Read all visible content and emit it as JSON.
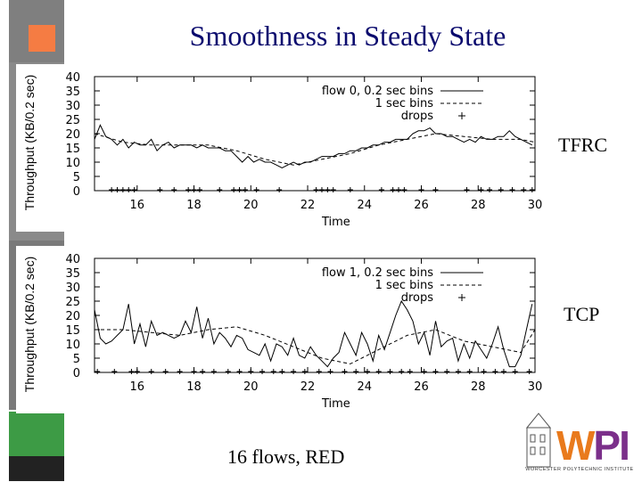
{
  "slide": {
    "title": "Smoothness in Steady State",
    "footer": "16 flows, RED"
  },
  "labels": {
    "top": "TFRC",
    "bottom": "TCP"
  },
  "logo": {
    "text": "WPI",
    "subtitle": "WORCESTER POLYTECHNIC INSTITUTE"
  },
  "colors": {
    "title": "#0a0a6e",
    "sidebar_gray": "#7f7f7f",
    "sidebar_orange": "#f57c43",
    "sidebar_green": "#3d9b45",
    "logo_orange": "#e97a1c",
    "logo_purple": "#7b2f8a"
  },
  "chart_data": [
    {
      "type": "line",
      "xlabel": "Time",
      "ylabel": "Throughput (KB/0.2 sec)",
      "xlim": [
        14.5,
        30
      ],
      "ylim": [
        0,
        40
      ],
      "xticks": [
        16,
        18,
        20,
        22,
        24,
        26,
        28,
        30
      ],
      "yticks": [
        0,
        5,
        10,
        15,
        20,
        25,
        30,
        35,
        40
      ],
      "legend_position": "top-right",
      "legend": [
        "flow 0, 0.2 sec bins",
        "1 sec bins",
        "drops"
      ],
      "series": [
        {
          "name": "flow 0, 0.2 sec bins",
          "style": "solid",
          "x": [
            14.5,
            14.7,
            14.9,
            15.1,
            15.3,
            15.5,
            15.7,
            15.9,
            16.1,
            16.3,
            16.5,
            16.7,
            16.9,
            17.1,
            17.3,
            17.5,
            17.7,
            17.9,
            18.1,
            18.3,
            18.5,
            18.7,
            18.9,
            19.1,
            19.3,
            19.5,
            19.7,
            19.9,
            20.1,
            20.3,
            20.5,
            20.7,
            20.9,
            21.1,
            21.3,
            21.5,
            21.7,
            21.9,
            22.1,
            22.3,
            22.5,
            22.7,
            22.9,
            23.1,
            23.3,
            23.5,
            23.7,
            23.9,
            24.1,
            24.3,
            24.5,
            24.7,
            24.9,
            25.1,
            25.3,
            25.5,
            25.7,
            25.9,
            26.1,
            26.3,
            26.5,
            26.7,
            26.9,
            27.1,
            27.3,
            27.5,
            27.7,
            27.9,
            28.1,
            28.3,
            28.5,
            28.7,
            28.9,
            29.1,
            29.3,
            29.5,
            29.7,
            29.9
          ],
          "values": [
            18,
            23,
            19,
            18,
            16,
            18,
            15,
            17,
            16,
            16,
            18,
            14,
            16,
            17,
            15,
            16,
            16,
            16,
            15,
            16,
            15,
            15,
            15,
            14,
            14,
            12,
            10,
            12,
            10,
            11,
            10,
            10,
            9,
            8,
            9,
            10,
            9,
            10,
            10,
            11,
            12,
            12,
            12,
            13,
            13,
            14,
            14,
            15,
            15,
            16,
            16,
            17,
            17,
            18,
            18,
            18,
            20,
            21,
            21,
            22,
            20,
            20,
            19,
            19,
            18,
            17,
            18,
            17,
            19,
            18,
            18,
            19,
            19,
            21,
            19,
            18,
            17,
            16
          ]
        },
        {
          "name": "1 sec bins",
          "style": "dashed",
          "x": [
            14.5,
            15.5,
            16.5,
            17.5,
            18.5,
            19.5,
            20.5,
            21.5,
            22.5,
            23.5,
            24.5,
            25.5,
            26.5,
            27.5,
            28.5,
            29.5,
            30
          ],
          "values": [
            20,
            17,
            16,
            16,
            16,
            14,
            11,
            9,
            11,
            13,
            16,
            18,
            20,
            19,
            18,
            18,
            17
          ]
        },
        {
          "name": "drops",
          "style": "marker",
          "x": [
            15.1,
            15.3,
            15.5,
            15.7,
            15.9,
            16.8,
            17.3,
            17.8,
            18.0,
            18.2,
            18.9,
            19.4,
            19.6,
            19.8,
            20.2,
            21.0,
            22.3,
            22.5,
            22.7,
            22.9,
            23.5,
            24.6,
            25.0,
            25.2,
            25.4,
            26.0,
            26.5,
            27.6,
            28.1,
            28.4,
            28.8,
            29.2,
            29.6,
            29.9
          ],
          "values": [
            0,
            0,
            0,
            0,
            0,
            0,
            0,
            0,
            0,
            0,
            0,
            0,
            0,
            0,
            0,
            0,
            0,
            0,
            0,
            0,
            0,
            0,
            0,
            0,
            0,
            0,
            0,
            0,
            0,
            0,
            0,
            0,
            0,
            0
          ]
        }
      ]
    },
    {
      "type": "line",
      "xlabel": "Time",
      "ylabel": "Throughput (KB/0.2 sec)",
      "xlim": [
        14.5,
        30
      ],
      "ylim": [
        0,
        40
      ],
      "xticks": [
        16,
        18,
        20,
        22,
        24,
        26,
        28,
        30
      ],
      "yticks": [
        0,
        5,
        10,
        15,
        20,
        25,
        30,
        35,
        40
      ],
      "legend_position": "top-right",
      "legend": [
        "flow 1, 0.2 sec bins",
        "1 sec bins",
        "drops"
      ],
      "series": [
        {
          "name": "flow 1, 0.2 sec bins",
          "style": "solid",
          "x": [
            14.5,
            14.7,
            14.9,
            15.1,
            15.3,
            15.5,
            15.7,
            15.9,
            16.1,
            16.3,
            16.5,
            16.7,
            16.9,
            17.1,
            17.3,
            17.5,
            17.7,
            17.9,
            18.1,
            18.3,
            18.5,
            18.7,
            18.9,
            19.1,
            19.3,
            19.5,
            19.7,
            19.9,
            20.1,
            20.3,
            20.5,
            20.7,
            20.9,
            21.1,
            21.3,
            21.5,
            21.7,
            21.9,
            22.1,
            22.3,
            22.5,
            22.7,
            22.9,
            23.1,
            23.3,
            23.5,
            23.7,
            23.9,
            24.1,
            24.3,
            24.5,
            24.7,
            24.9,
            25.1,
            25.3,
            25.5,
            25.7,
            25.9,
            26.1,
            26.3,
            26.5,
            26.7,
            26.9,
            27.1,
            27.3,
            27.5,
            27.7,
            27.9,
            28.1,
            28.3,
            28.5,
            28.7,
            28.9,
            29.1,
            29.3,
            29.5,
            29.7,
            29.9
          ],
          "values": [
            22,
            12,
            10,
            11,
            13,
            15,
            24,
            10,
            17,
            9,
            18,
            13,
            14,
            13,
            12,
            13,
            18,
            14,
            23,
            12,
            19,
            10,
            14,
            12,
            9,
            13,
            12,
            8,
            7,
            6,
            10,
            4,
            10,
            9,
            6,
            12,
            6,
            5,
            9,
            6,
            4,
            2,
            5,
            7,
            14,
            10,
            6,
            14,
            10,
            4,
            13,
            8,
            14,
            20,
            25,
            22,
            18,
            10,
            14,
            6,
            18,
            9,
            11,
            12,
            4,
            10,
            5,
            11,
            8,
            5,
            10,
            16,
            8,
            2,
            2,
            6,
            15,
            24
          ]
        },
        {
          "name": "1 sec bins",
          "style": "dashed",
          "x": [
            14.5,
            15.5,
            16.5,
            17.5,
            18.5,
            19.5,
            20.5,
            21.5,
            22.5,
            23.5,
            24.5,
            25.5,
            26.5,
            27.5,
            28.5,
            29.5,
            30
          ],
          "values": [
            15,
            15,
            14,
            13,
            15,
            16,
            13,
            9,
            5,
            3,
            8,
            13,
            15,
            11,
            9,
            7,
            15
          ]
        },
        {
          "name": "drops",
          "style": "marker",
          "x": [
            14.6,
            15.2,
            15.8,
            16.0,
            16.5,
            17.0,
            17.5,
            18.0,
            18.3,
            18.7,
            19.2,
            19.6,
            20.0,
            20.4,
            20.8,
            21.1,
            21.5,
            21.9,
            22.4,
            22.8,
            23.3,
            23.7,
            24.1,
            24.5,
            24.9,
            25.3,
            25.6,
            26.1,
            26.5,
            26.9,
            27.3,
            27.7,
            28.2,
            28.6,
            28.9,
            29.3,
            29.8
          ],
          "values": [
            0,
            0,
            0,
            0,
            0,
            0,
            0,
            0,
            0,
            0,
            0,
            0,
            0,
            0,
            0,
            0,
            0,
            0,
            0,
            0,
            0,
            0,
            0,
            0,
            0,
            0,
            0,
            0,
            0,
            0,
            0,
            0,
            0,
            0,
            0,
            0,
            0
          ]
        }
      ]
    }
  ]
}
